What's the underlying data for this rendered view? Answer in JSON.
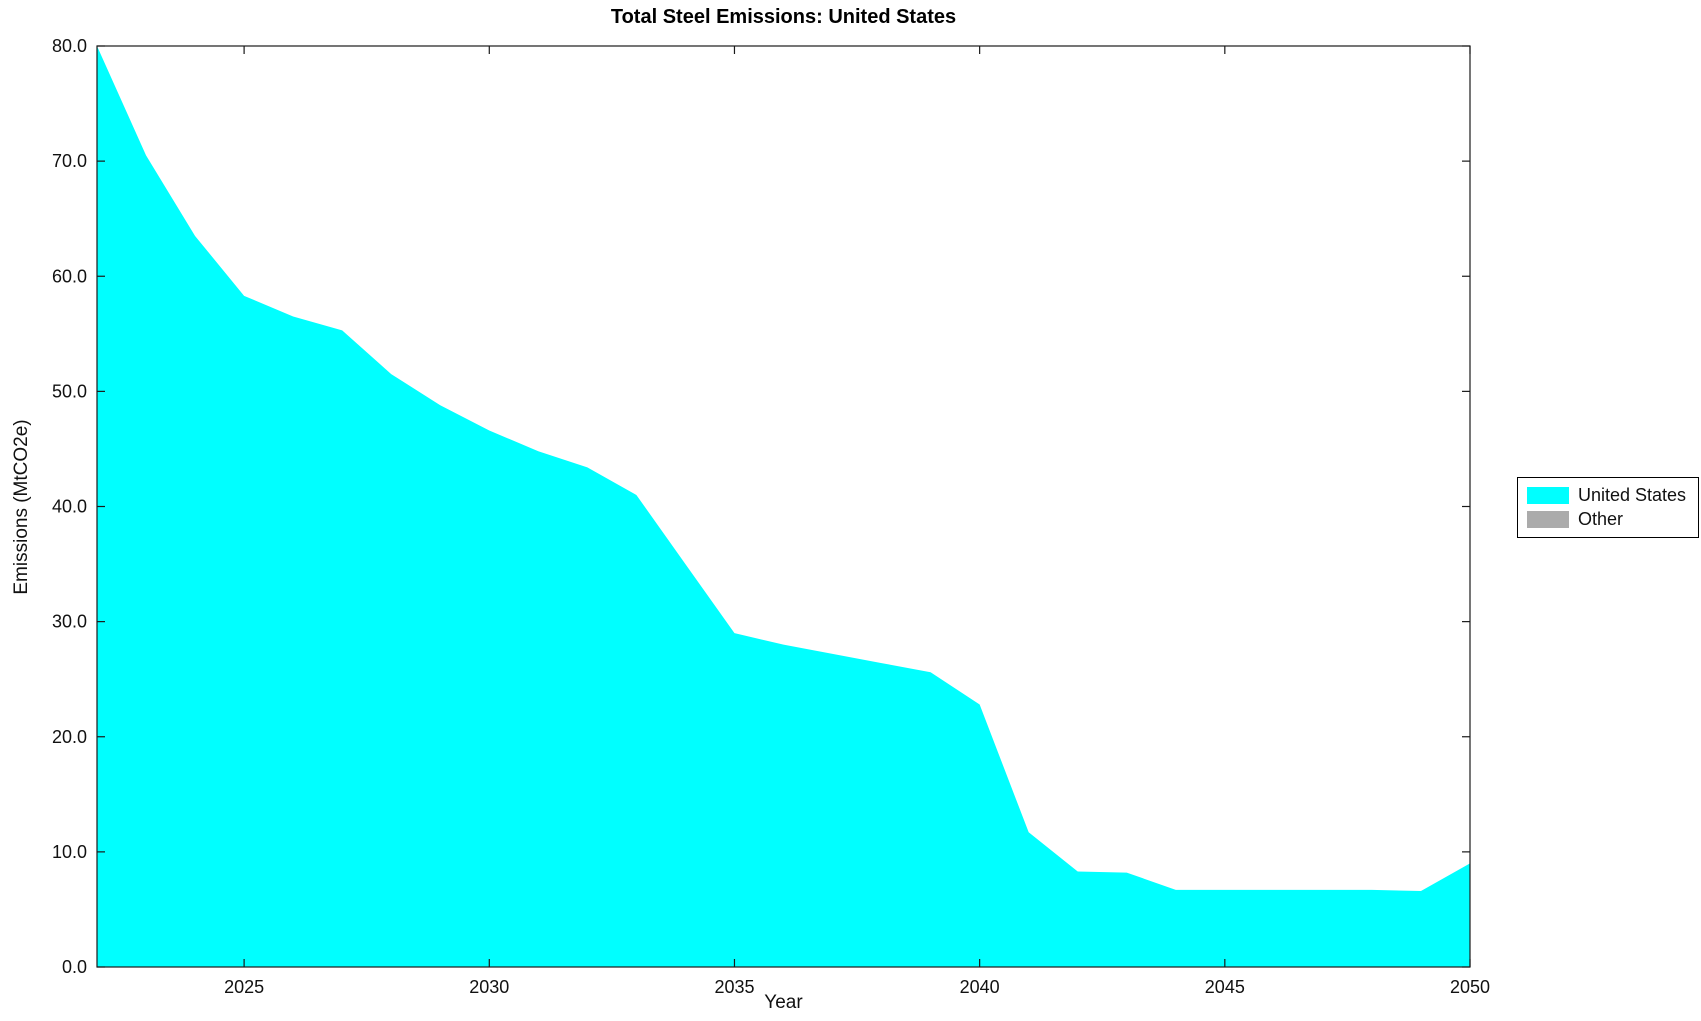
{
  "figure": {
    "title": "Total Steel Emissions: United States",
    "xlabel": "Year",
    "ylabel": "Emissions (MtCO2e)"
  },
  "legend": {
    "items": [
      {
        "label": "United States",
        "color": "#00FFFF"
      },
      {
        "label": "Other",
        "color": "#ABABAB"
      }
    ]
  },
  "chart_data": {
    "type": "area",
    "title": "Total Steel Emissions: United States",
    "xlabel": "Year",
    "ylabel": "Emissions (MtCO2e)",
    "xlim": [
      2022,
      2050
    ],
    "ylim": [
      0,
      80
    ],
    "xticks": [
      2025,
      2030,
      2035,
      2040,
      2045,
      2050
    ],
    "yticks": [
      0,
      10,
      20,
      30,
      40,
      50,
      60,
      70,
      80
    ],
    "ytick_labels": [
      "0.0",
      "10.0",
      "20.0",
      "30.0",
      "40.0",
      "50.0",
      "60.0",
      "70.0",
      "80.0"
    ],
    "grid": false,
    "legend_position": "right-outside",
    "axis_color": "#1a1a1a",
    "series": [
      {
        "name": "United States",
        "color": "#00FFFF",
        "x": [
          2022,
          2023,
          2024,
          2025,
          2026,
          2027,
          2028,
          2029,
          2030,
          2031,
          2032,
          2033,
          2034,
          2035,
          2036,
          2037,
          2038,
          2039,
          2040,
          2041,
          2042,
          2043,
          2044,
          2045,
          2046,
          2047,
          2048,
          2049,
          2050
        ],
        "values": [
          80.0,
          70.5,
          63.5,
          58.3,
          56.5,
          55.3,
          51.5,
          48.8,
          46.6,
          44.8,
          43.4,
          41.0,
          35.0,
          29.0,
          28.0,
          27.2,
          26.4,
          25.6,
          22.8,
          11.7,
          8.3,
          8.2,
          6.7,
          6.7,
          6.7,
          6.7,
          6.7,
          6.6,
          9.0
        ]
      },
      {
        "name": "Other",
        "color": "#ABABAB",
        "x": [],
        "values": []
      }
    ]
  }
}
